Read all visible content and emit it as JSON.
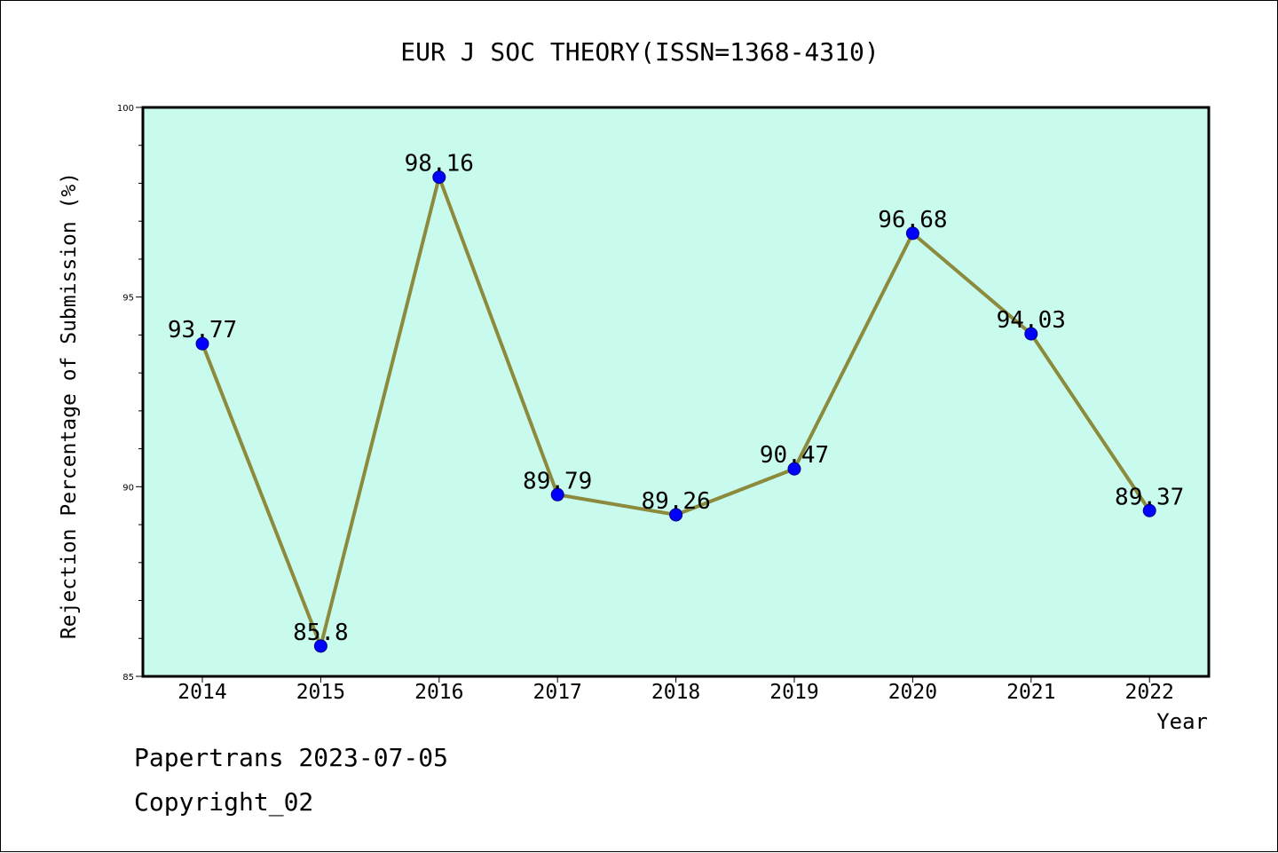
{
  "chart_data": {
    "type": "line",
    "title": "EUR J SOC THEORY(ISSN=1368-4310)",
    "xlabel": "Year",
    "ylabel": "Rejection Percentage of Submission (%)",
    "categories": [
      "2014",
      "2015",
      "2016",
      "2017",
      "2018",
      "2019",
      "2020",
      "2021",
      "2022"
    ],
    "series": [
      {
        "values": [
          93.77,
          85.8,
          98.16,
          89.79,
          89.26,
          90.47,
          96.68,
          94.03,
          89.37
        ],
        "labels": [
          "93.77",
          "85.8",
          "98.16",
          "89.79",
          "89.26",
          "90.47",
          "96.68",
          "94.03",
          "89.37"
        ]
      }
    ],
    "ylim": [
      85,
      100
    ],
    "y_major_ticks": [
      "85",
      "90",
      "95",
      "100"
    ],
    "y_minor_step": 1,
    "grid": false,
    "colors": {
      "plot_background": "#c8fbee",
      "line": "#8c8a3c",
      "marker": "#0000ff"
    }
  },
  "footer": {
    "line1": "Papertrans 2023-07-05",
    "line2": "Copyright_02"
  }
}
